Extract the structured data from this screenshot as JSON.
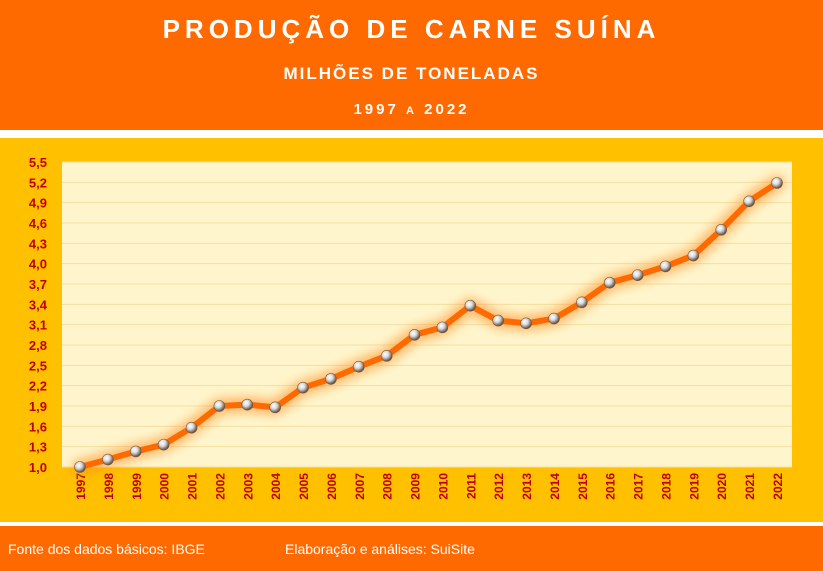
{
  "header": {
    "title": "PRODUÇÃO DE CARNE SUÍNA",
    "subtitle": "MILHÕES DE TONELADAS",
    "period_start": "1997",
    "period_sep": "A",
    "period_end": "2022"
  },
  "footer": {
    "source": "Fonte dos dados básicos: IBGE",
    "credit": "Elaboração e análises: SuiSite"
  },
  "colors": {
    "header_bg": "#ff6a00",
    "chart_border": "#ffc000",
    "plot_bg": "#fff5cc",
    "line": "#ff6a00",
    "axis_text": "#c00000"
  },
  "chart_data": {
    "type": "line",
    "title": "PRODUÇÃO DE CARNE SUÍNA",
    "xlabel": "",
    "ylabel": "",
    "ylim": [
      1.0,
      5.5
    ],
    "grid": true,
    "y_ticks": [
      "1,0",
      "1,3",
      "1,6",
      "1,9",
      "2,2",
      "2,5",
      "2,8",
      "3,1",
      "3,4",
      "3,7",
      "4,0",
      "4,3",
      "4,6",
      "4,9",
      "5,2",
      "5,5"
    ],
    "categories": [
      "1997",
      "1998",
      "1999",
      "2000",
      "2001",
      "2002",
      "2003",
      "2004",
      "2005",
      "2006",
      "2007",
      "2008",
      "2009",
      "2010",
      "2011",
      "2012",
      "2013",
      "2014",
      "2015",
      "2016",
      "2017",
      "2018",
      "2019",
      "2020",
      "2021",
      "2022"
    ],
    "series": [
      {
        "values": [
          1.0,
          1.11,
          1.23,
          1.33,
          1.58,
          1.9,
          1.92,
          1.88,
          2.17,
          2.3,
          2.48,
          2.64,
          2.95,
          3.06,
          3.38,
          3.16,
          3.12,
          3.19,
          3.43,
          3.72,
          3.83,
          3.96,
          4.12,
          4.5,
          4.92,
          5.19
        ]
      }
    ]
  }
}
